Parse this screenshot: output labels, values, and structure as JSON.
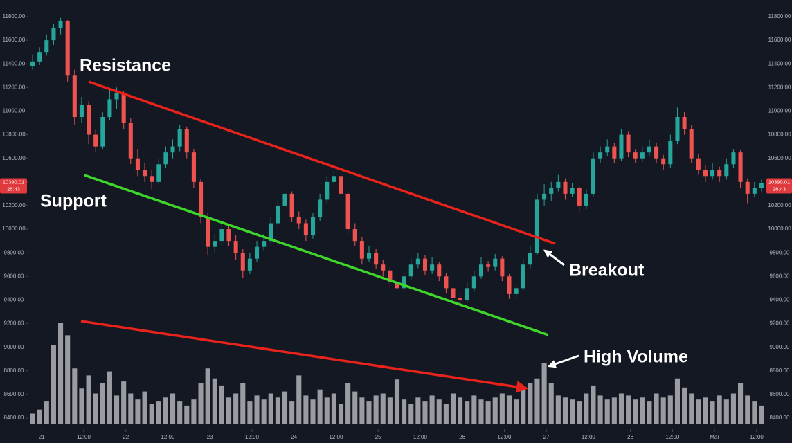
{
  "chart_data": {
    "type": "candlestick",
    "annotations": [
      "Resistance",
      "Support",
      "Breakout",
      "High Volume"
    ],
    "last_price": 10390.01,
    "countdown": "26:43",
    "up_color": "#26a69a",
    "down_color": "#ef5350",
    "volume_color": "#9a9ca1",
    "ylim": [
      8400,
      11800
    ],
    "yticks": [
      {
        "value": 8400,
        "label": "8400.00"
      },
      {
        "value": 8600,
        "label": "8600.00"
      },
      {
        "value": 8800,
        "label": "8800.00"
      },
      {
        "value": 9000,
        "label": "9000.00"
      },
      {
        "value": 9200,
        "label": "9200.00"
      },
      {
        "value": 9400,
        "label": "9400.00"
      },
      {
        "value": 9600,
        "label": "9600.00"
      },
      {
        "value": 9800,
        "label": "9800.00"
      },
      {
        "value": 10000,
        "label": "10000.00"
      },
      {
        "value": 10200,
        "label": "10200.00"
      },
      {
        "value": 10400,
        "label": "10400.00"
      },
      {
        "value": 10600,
        "label": "10600.00"
      },
      {
        "value": 10800,
        "label": "10800.00"
      },
      {
        "value": 11000,
        "label": "11000.00"
      },
      {
        "value": 11200,
        "label": "11200.00"
      },
      {
        "value": 11400,
        "label": "11400.00"
      },
      {
        "value": 11600,
        "label": "11600.00"
      },
      {
        "value": 11800,
        "label": "11800.00"
      }
    ],
    "xlim": [
      0,
      105
    ],
    "xticks": [
      {
        "value": 1.8,
        "label": "21"
      },
      {
        "value": 7.8,
        "label": "12:00"
      },
      {
        "value": 13.8,
        "label": "22"
      },
      {
        "value": 19.8,
        "label": "12:00"
      },
      {
        "value": 25.8,
        "label": "23"
      },
      {
        "value": 31.8,
        "label": "12:00"
      },
      {
        "value": 37.8,
        "label": "24"
      },
      {
        "value": 43.8,
        "label": "12:00"
      },
      {
        "value": 49.8,
        "label": "25"
      },
      {
        "value": 55.8,
        "label": "12:00"
      },
      {
        "value": 61.8,
        "label": "26"
      },
      {
        "value": 67.8,
        "label": "12:00"
      },
      {
        "value": 73.8,
        "label": "27"
      },
      {
        "value": 79.8,
        "label": "12:00"
      },
      {
        "value": 85.8,
        "label": "28"
      },
      {
        "value": 91.8,
        "label": "12:00"
      },
      {
        "value": 97.8,
        "label": "Mar"
      },
      {
        "value": 103.8,
        "label": "12:00"
      }
    ],
    "candles": [
      [
        11380,
        11480,
        11350,
        11420
      ],
      [
        11420,
        11540,
        11390,
        11500
      ],
      [
        11500,
        11650,
        11470,
        11600
      ],
      [
        11600,
        11740,
        11560,
        11700
      ],
      [
        11700,
        11790,
        11650,
        11760
      ],
      [
        11760,
        11770,
        11250,
        11300
      ],
      [
        11300,
        11350,
        10880,
        10950
      ],
      [
        10950,
        11120,
        10900,
        11050
      ],
      [
        11050,
        11080,
        10720,
        10800
      ],
      [
        10800,
        10850,
        10650,
        10700
      ],
      [
        10700,
        10990,
        10680,
        10950
      ],
      [
        10950,
        11180,
        10920,
        11100
      ],
      [
        11100,
        11200,
        11020,
        11150
      ],
      [
        11150,
        11170,
        10850,
        10900
      ],
      [
        10900,
        10940,
        10550,
        10600
      ],
      [
        10600,
        10680,
        10450,
        10500
      ],
      [
        10500,
        10560,
        10400,
        10450
      ],
      [
        10450,
        10500,
        10340,
        10400
      ],
      [
        10400,
        10600,
        10380,
        10550
      ],
      [
        10550,
        10700,
        10520,
        10650
      ],
      [
        10650,
        10760,
        10600,
        10700
      ],
      [
        10700,
        10880,
        10660,
        10850
      ],
      [
        10850,
        10870,
        10600,
        10650
      ],
      [
        10650,
        10680,
        10350,
        10400
      ],
      [
        10400,
        10430,
        10050,
        10100
      ],
      [
        10100,
        10140,
        9780,
        9850
      ],
      [
        9850,
        9960,
        9800,
        9900
      ],
      [
        9900,
        10060,
        9860,
        10000
      ],
      [
        10000,
        10040,
        9860,
        9900
      ],
      [
        9900,
        9950,
        9740,
        9800
      ],
      [
        9800,
        9830,
        9590,
        9650
      ],
      [
        9650,
        9800,
        9620,
        9750
      ],
      [
        9750,
        9900,
        9720,
        9850
      ],
      [
        9850,
        9960,
        9820,
        9900
      ],
      [
        9900,
        10100,
        9880,
        10050
      ],
      [
        10050,
        10250,
        10020,
        10200
      ],
      [
        10200,
        10360,
        10160,
        10300
      ],
      [
        10300,
        10320,
        10060,
        10100
      ],
      [
        10100,
        10150,
        10000,
        10050
      ],
      [
        10050,
        10080,
        9900,
        9950
      ],
      [
        9950,
        10140,
        9920,
        10100
      ],
      [
        10100,
        10300,
        10070,
        10250
      ],
      [
        10250,
        10450,
        10220,
        10400
      ],
      [
        10400,
        10500,
        10370,
        10450
      ],
      [
        10450,
        10480,
        10260,
        10300
      ],
      [
        10300,
        10320,
        9960,
        10000
      ],
      [
        10000,
        10050,
        9860,
        9900
      ],
      [
        9900,
        9930,
        9700,
        9750
      ],
      [
        9750,
        9860,
        9720,
        9800
      ],
      [
        9800,
        9830,
        9660,
        9700
      ],
      [
        9700,
        9740,
        9600,
        9650
      ],
      [
        9650,
        9680,
        9510,
        9550
      ],
      [
        9550,
        9570,
        9370,
        9500
      ],
      [
        9500,
        9650,
        9470,
        9600
      ],
      [
        9600,
        9750,
        9570,
        9700
      ],
      [
        9700,
        9800,
        9670,
        9750
      ],
      [
        9750,
        9780,
        9610,
        9650
      ],
      [
        9650,
        9760,
        9620,
        9700
      ],
      [
        9700,
        9720,
        9560,
        9600
      ],
      [
        9600,
        9630,
        9460,
        9500
      ],
      [
        9500,
        9530,
        9380,
        9420
      ],
      [
        9420,
        9460,
        9340,
        9400
      ],
      [
        9400,
        9550,
        9380,
        9500
      ],
      [
        9500,
        9650,
        9470,
        9600
      ],
      [
        9600,
        9760,
        9580,
        9700
      ],
      [
        9700,
        9730,
        9640,
        9680
      ],
      [
        9680,
        9790,
        9650,
        9750
      ],
      [
        9750,
        9770,
        9560,
        9600
      ],
      [
        9600,
        9620,
        9410,
        9450
      ],
      [
        9450,
        9540,
        9420,
        9500
      ],
      [
        9500,
        9750,
        9480,
        9700
      ],
      [
        9700,
        9860,
        9670,
        9800
      ],
      [
        9800,
        10300,
        9780,
        10250
      ],
      [
        10250,
        10380,
        10200,
        10300
      ],
      [
        10300,
        10400,
        10240,
        10350
      ],
      [
        10350,
        10460,
        10320,
        10400
      ],
      [
        10400,
        10430,
        10250,
        10300
      ],
      [
        10300,
        10390,
        10270,
        10350
      ],
      [
        10350,
        10370,
        10150,
        10200
      ],
      [
        10200,
        10340,
        10170,
        10300
      ],
      [
        10300,
        10650,
        10280,
        10600
      ],
      [
        10600,
        10700,
        10560,
        10650
      ],
      [
        10650,
        10760,
        10620,
        10700
      ],
      [
        10700,
        10730,
        10560,
        10600
      ],
      [
        10600,
        10850,
        10580,
        10800
      ],
      [
        10800,
        10830,
        10610,
        10650
      ],
      [
        10650,
        10680,
        10560,
        10600
      ],
      [
        10600,
        10700,
        10570,
        10650
      ],
      [
        10650,
        10760,
        10620,
        10700
      ],
      [
        10700,
        10730,
        10560,
        10600
      ],
      [
        10600,
        10630,
        10500,
        10550
      ],
      [
        10550,
        10800,
        10520,
        10750
      ],
      [
        10750,
        11030,
        10720,
        10950
      ],
      [
        10950,
        10990,
        10800,
        10850
      ],
      [
        10850,
        10880,
        10560,
        10600
      ],
      [
        10600,
        10640,
        10460,
        10500
      ],
      [
        10500,
        10540,
        10400,
        10450
      ],
      [
        10450,
        10560,
        10420,
        10500
      ],
      [
        10500,
        10530,
        10400,
        10450
      ],
      [
        10450,
        10600,
        10420,
        10550
      ],
      [
        10550,
        10680,
        10520,
        10650
      ],
      [
        10650,
        10670,
        10350,
        10400
      ],
      [
        10400,
        10430,
        10220,
        10300
      ],
      [
        10300,
        10400,
        10270,
        10350
      ],
      [
        10350,
        10420,
        10320,
        10390
      ]
    ],
    "y2lim": [
      0,
      100
    ],
    "volume": [
      10,
      14,
      22,
      78,
      100,
      88,
      55,
      35,
      48,
      30,
      40,
      52,
      28,
      42,
      30,
      24,
      32,
      20,
      22,
      26,
      30,
      22,
      18,
      24,
      40,
      55,
      45,
      38,
      26,
      30,
      40,
      22,
      28,
      24,
      30,
      26,
      32,
      22,
      48,
      28,
      24,
      34,
      26,
      30,
      20,
      40,
      32,
      26,
      22,
      28,
      30,
      26,
      44,
      24,
      20,
      26,
      22,
      28,
      24,
      20,
      30,
      26,
      22,
      28,
      24,
      22,
      26,
      30,
      28,
      24,
      34,
      40,
      45,
      60,
      40,
      28,
      26,
      24,
      22,
      30,
      38,
      28,
      24,
      26,
      30,
      28,
      24,
      26,
      22,
      30,
      26,
      28,
      45,
      36,
      30,
      24,
      26,
      22,
      28,
      24,
      30,
      40,
      28,
      22,
      18
    ]
  }
}
